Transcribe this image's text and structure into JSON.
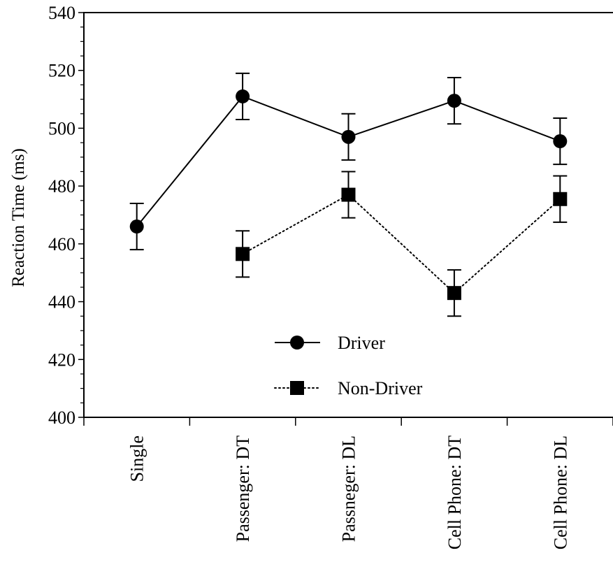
{
  "chart_data": {
    "type": "line",
    "title": "",
    "xlabel": "",
    "ylabel": "Reaction Time (ms)",
    "categories": [
      "Single",
      "Passenger: DT",
      "Passneger: DL",
      "Cell Phone: DT",
      "Cell Phone: DL"
    ],
    "ylim": [
      400,
      540
    ],
    "yticks": [
      "400",
      "420",
      "440",
      "460",
      "480",
      "500",
      "520",
      "540"
    ],
    "grid": false,
    "legend_position": "lower-center",
    "series": [
      {
        "name": "Driver",
        "marker": "circle",
        "line_style": "solid",
        "color": "#000000",
        "values": [
          466,
          511,
          497,
          509.5,
          495.5
        ],
        "errors": [
          8,
          8,
          8,
          8,
          8
        ]
      },
      {
        "name": "Non-Driver",
        "marker": "square",
        "line_style": "dotted",
        "color": "#000000",
        "values": [
          null,
          456.5,
          477,
          443,
          475.5
        ],
        "errors": [
          null,
          8,
          8,
          8,
          8
        ]
      }
    ]
  }
}
